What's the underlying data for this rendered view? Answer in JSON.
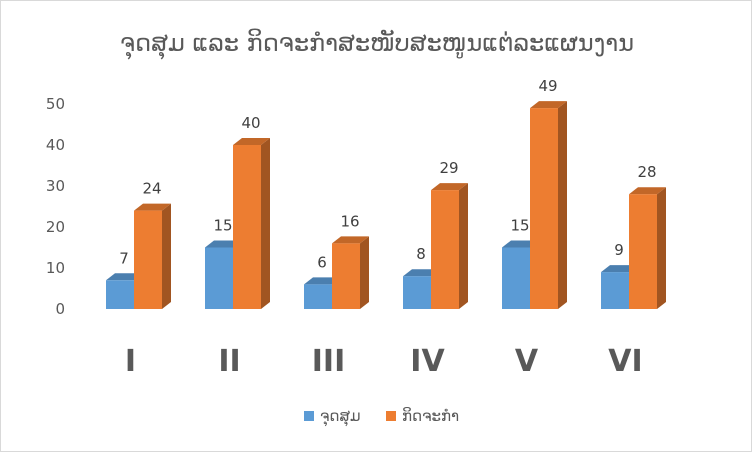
{
  "chart_data": {
    "type": "bar",
    "title": "ຈຸດສຸມ ແລະ ກິດຈະກຳສະໜັບສະໜູນແຕ່ລະແຜນງານ",
    "categories": [
      "I",
      "II",
      "III",
      "IV",
      "V",
      "VI"
    ],
    "series": [
      {
        "name": "ຈຸດສຸມ",
        "values": [
          7,
          15,
          6,
          8,
          15,
          9
        ],
        "color": "#5B9BD5"
      },
      {
        "name": "ກິດຈະກຳ",
        "values": [
          24,
          40,
          16,
          29,
          49,
          28
        ],
        "color": "#ED7D31"
      }
    ],
    "y_ticks": [
      0,
      10,
      20,
      30,
      40,
      50
    ],
    "ylim": [
      0,
      50
    ],
    "xlabel": "",
    "ylabel": "",
    "grid": false,
    "legend_position": "bottom",
    "style": "3d-column"
  }
}
